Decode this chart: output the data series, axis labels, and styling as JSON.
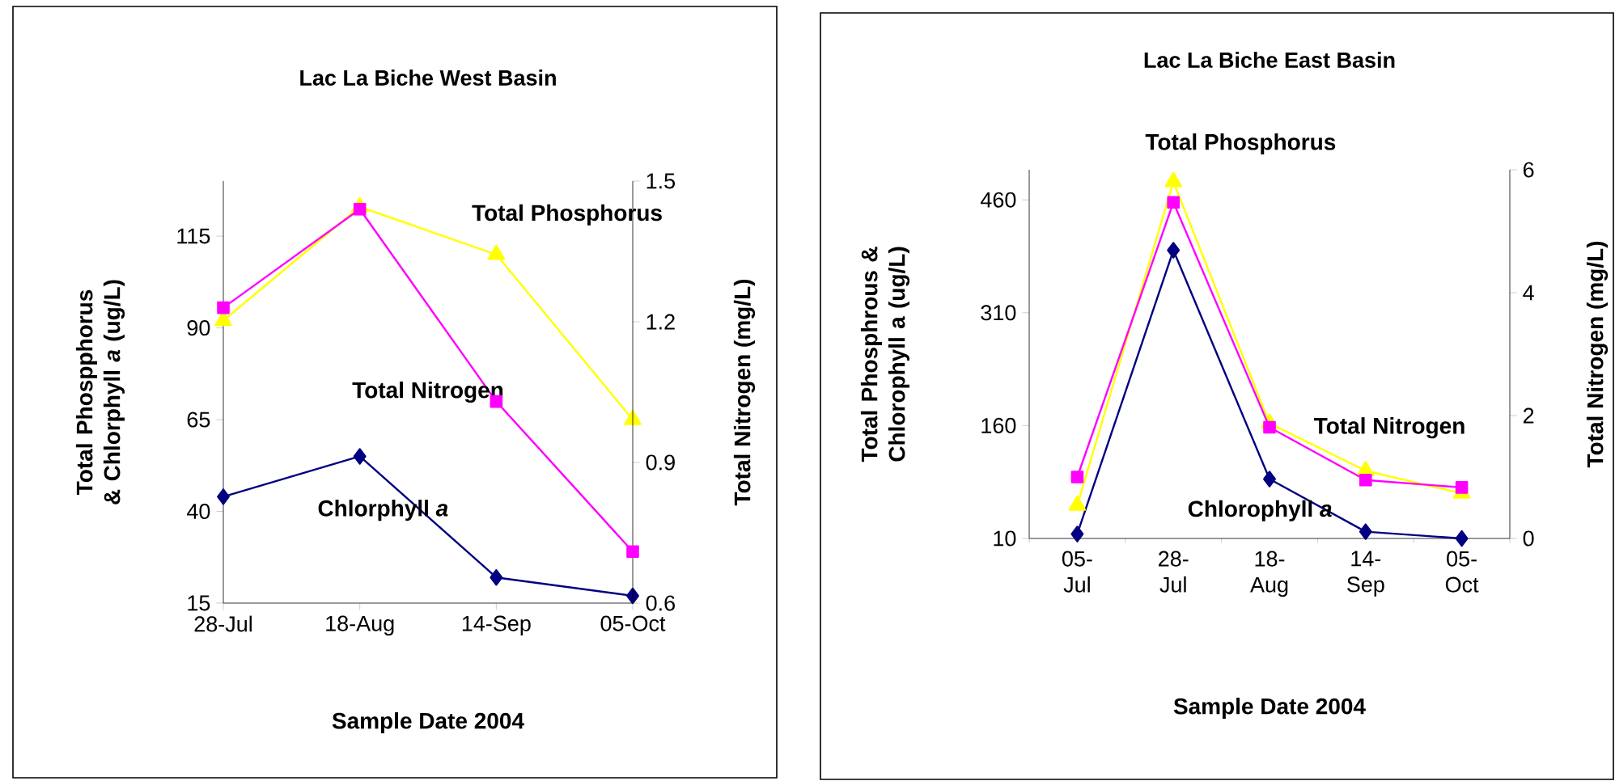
{
  "chart_data": [
    {
      "type": "line",
      "title": "Lac La Biche West Basin",
      "xlabel": "Sample Date 2004",
      "ylabel": "Total Phospphorus & Chlorphyll *a* (ug/L)",
      "y2label": "Total Nitrogen (mg/L)",
      "categories": [
        "28-Jul",
        "18-Aug",
        "14-Sep",
        "05-Oct"
      ],
      "series": [
        {
          "name": "Chlorphyll *a*",
          "color": "#000080",
          "marker": "diamond",
          "values": [
            44,
            55,
            22,
            17
          ]
        },
        {
          "name": "Total Phosphorus",
          "color": "#ffff00",
          "marker": "triangle",
          "values": [
            92,
            123,
            110,
            65
          ]
        },
        {
          "name": "Total Nitrogen",
          "color": "#ff00ff",
          "marker": "square",
          "axis": "y2",
          "values": [
            1.23,
            1.44,
            1.03,
            0.71
          ]
        }
      ],
      "ylim": [
        15,
        130
      ],
      "yticks": [
        15,
        40,
        65,
        90,
        115
      ],
      "y2lim": [
        0.6,
        1.5
      ],
      "y2ticks": [
        0.6,
        0.9,
        1.2,
        1.5
      ]
    },
    {
      "type": "line",
      "title": "Lac La Biche East Basin",
      "xlabel": "Sample Date 2004",
      "ylabel": "Total Phosphrous & Chlorophyll a (ug/L)",
      "y2label": "Total Nitrogen (mg/L)",
      "categories": [
        "05-Jul",
        "28-Jul",
        "18-Aug",
        "14-Sep",
        "05-Oct"
      ],
      "series": [
        {
          "name": "Chlorophyll *a*",
          "color": "#000080",
          "marker": "diamond",
          "values": [
            16,
            393,
            89,
            19,
            10
          ]
        },
        {
          "name": "Total Phosphorus",
          "color": "#ffff00",
          "marker": "triangle",
          "values": [
            54,
            484,
            163,
            100,
            70
          ]
        },
        {
          "name": "Total Nitrogen",
          "color": "#ff00ff",
          "marker": "square",
          "axis": "y2",
          "values": [
            1.0,
            5.47,
            1.81,
            0.95,
            0.83
          ]
        }
      ],
      "ylim": [
        10,
        500
      ],
      "yticks": [
        10,
        160,
        310,
        460
      ],
      "y2lim": [
        0,
        6
      ],
      "y2ticks": [
        0,
        2,
        4,
        6
      ]
    }
  ]
}
